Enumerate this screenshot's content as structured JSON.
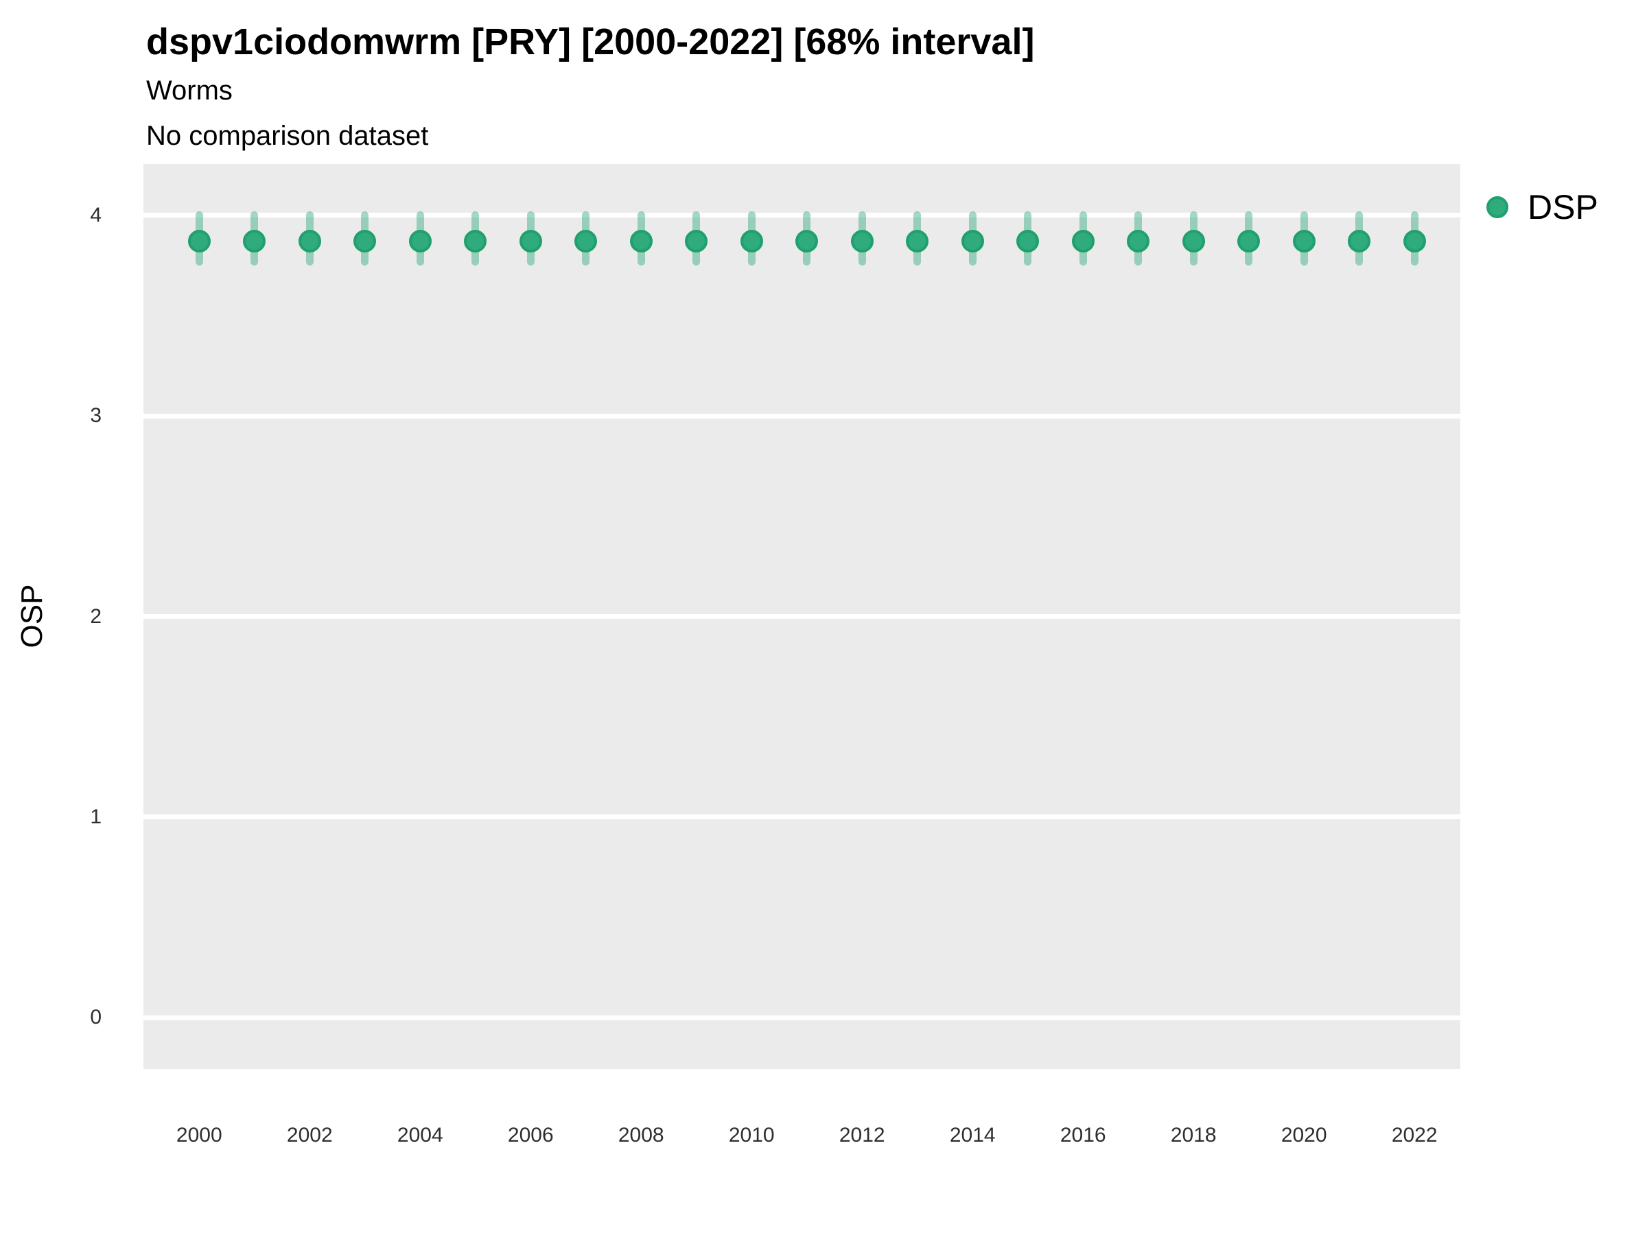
{
  "header": {
    "title": "dspv1ciodomwrm [PRY] [2000-2022] [68% interval]",
    "subtitle": "Worms",
    "note": "No comparison dataset"
  },
  "legend": {
    "items": [
      {
        "label": "DSP",
        "swatch": "circle-icon"
      }
    ]
  },
  "colors": {
    "panel_bg": "#EBEBEB",
    "gridline": "#FFFFFF",
    "point_fill": "#2FAB7D",
    "point_edge": "#1FA06C",
    "interval": "rgba(47,171,125,0.45)",
    "tick_text": "#2e2e2e",
    "title_text": "#000000"
  },
  "chart_data": {
    "type": "scatter",
    "title": "dspv1ciodomwrm [PRY] [2000-2022] [68% interval]",
    "subtitle": "Worms",
    "note": "No comparison dataset",
    "xlabel": "",
    "ylabel": "OSP",
    "legend_position": "right",
    "grid": "major-horizontal-only",
    "interval_level": "68%",
    "xlim": [
      1998.99,
      2022.83
    ],
    "ylim": [
      -0.255,
      4.255
    ],
    "yticks": [
      4,
      3,
      2,
      1,
      0
    ],
    "xticks": [
      2000,
      2002,
      2004,
      2006,
      2008,
      2010,
      2012,
      2014,
      2016,
      2018,
      2020,
      2022
    ],
    "series": [
      {
        "name": "DSP",
        "x": [
          2000,
          2001,
          2002,
          2003,
          2004,
          2005,
          2006,
          2007,
          2008,
          2009,
          2010,
          2011,
          2012,
          2013,
          2014,
          2015,
          2016,
          2017,
          2018,
          2019,
          2020,
          2021,
          2022
        ],
        "y": [
          3.87,
          3.87,
          3.87,
          3.87,
          3.87,
          3.87,
          3.87,
          3.87,
          3.87,
          3.87,
          3.87,
          3.87,
          3.87,
          3.87,
          3.87,
          3.87,
          3.87,
          3.87,
          3.87,
          3.87,
          3.87,
          3.87,
          3.87
        ],
        "y_lo": [
          3.75,
          3.75,
          3.75,
          3.75,
          3.75,
          3.75,
          3.75,
          3.75,
          3.75,
          3.75,
          3.75,
          3.75,
          3.75,
          3.75,
          3.75,
          3.75,
          3.75,
          3.75,
          3.75,
          3.75,
          3.75,
          3.75,
          3.75
        ],
        "y_hi": [
          4.02,
          4.02,
          4.02,
          4.02,
          4.02,
          4.02,
          4.02,
          4.02,
          4.02,
          4.02,
          4.02,
          4.02,
          4.02,
          4.02,
          4.02,
          4.02,
          4.02,
          4.02,
          4.02,
          4.02,
          4.02,
          4.02,
          4.02
        ]
      }
    ]
  }
}
